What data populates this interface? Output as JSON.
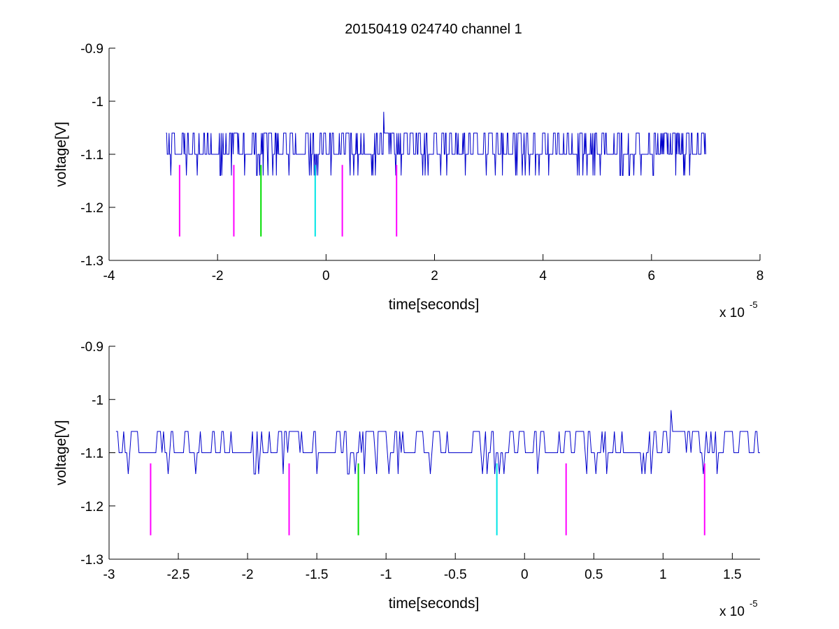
{
  "title": "20150419 024740 channel 1",
  "chart_data": [
    {
      "type": "line",
      "name": "top",
      "xlabel": "time[seconds]",
      "ylabel": "voltage[V]",
      "x_multiplier_label": "x 10",
      "x_multiplier_exp": "-5",
      "xlim": [
        -4,
        8
      ],
      "ylim": [
        -1.3,
        -0.9
      ],
      "xticks": [
        -4,
        -2,
        0,
        2,
        4,
        6,
        8
      ],
      "xtick_labels": [
        "-4",
        "-2",
        "0",
        "2",
        "4",
        "6",
        "8"
      ],
      "yticks": [
        -0.9,
        -1.0,
        -1.1,
        -1.2,
        -1.3
      ],
      "ytick_labels": [
        "-0.9",
        "-1",
        "-1.1",
        "-1.2",
        "-1.3"
      ],
      "grid": false,
      "signal": {
        "color": "#0000cc",
        "x_range": [
          -2.95,
          7.0
        ],
        "baseline": -1.1,
        "upper_level": -1.06,
        "lower_level": -1.14,
        "spike": {
          "x": 1.06,
          "y": -1.02
        }
      },
      "markers": [
        {
          "x": -2.7,
          "y_top": -1.12,
          "y_bottom": -1.255,
          "color": "#ff00ff"
        },
        {
          "x": -1.7,
          "y_top": -1.12,
          "y_bottom": -1.255,
          "color": "#ff00ff"
        },
        {
          "x": -1.2,
          "y_top": -1.12,
          "y_bottom": -1.255,
          "color": "#00dd00"
        },
        {
          "x": -0.2,
          "y_top": -1.12,
          "y_bottom": -1.255,
          "color": "#00e5e5"
        },
        {
          "x": 0.3,
          "y_top": -1.12,
          "y_bottom": -1.255,
          "color": "#ff00ff"
        },
        {
          "x": 1.3,
          "y_top": -1.12,
          "y_bottom": -1.255,
          "color": "#ff00ff"
        }
      ]
    },
    {
      "type": "line",
      "name": "bottom",
      "xlabel": "time[seconds]",
      "ylabel": "voltage[V]",
      "x_multiplier_label": "x 10",
      "x_multiplier_exp": "-5",
      "xlim": [
        -3.0,
        1.7
      ],
      "ylim": [
        -1.3,
        -0.9
      ],
      "xticks": [
        -3,
        -2.5,
        -2,
        -1.5,
        -1,
        -0.5,
        0,
        0.5,
        1,
        1.5
      ],
      "xtick_labels": [
        "-3",
        "-2.5",
        "-2",
        "-1.5",
        "-1",
        "-0.5",
        "0",
        "0.5",
        "1",
        "1.5"
      ],
      "yticks": [
        -0.9,
        -1.0,
        -1.1,
        -1.2,
        -1.3
      ],
      "ytick_labels": [
        "-0.9",
        "-1",
        "-1.1",
        "-1.2",
        "-1.3"
      ],
      "grid": false,
      "signal": {
        "color": "#0000cc",
        "x_range": [
          -2.95,
          1.7
        ],
        "baseline": -1.1,
        "upper_level": -1.06,
        "lower_level": -1.14,
        "spike": {
          "x": 1.06,
          "y": -1.02
        }
      },
      "markers": [
        {
          "x": -2.7,
          "y_top": -1.12,
          "y_bottom": -1.255,
          "color": "#ff00ff"
        },
        {
          "x": -1.7,
          "y_top": -1.12,
          "y_bottom": -1.255,
          "color": "#ff00ff"
        },
        {
          "x": -1.2,
          "y_top": -1.12,
          "y_bottom": -1.255,
          "color": "#00dd00"
        },
        {
          "x": -0.2,
          "y_top": -1.12,
          "y_bottom": -1.255,
          "color": "#00e5e5"
        },
        {
          "x": 0.3,
          "y_top": -1.12,
          "y_bottom": -1.255,
          "color": "#ff00ff"
        },
        {
          "x": 1.3,
          "y_top": -1.12,
          "y_bottom": -1.255,
          "color": "#ff00ff"
        }
      ]
    }
  ]
}
